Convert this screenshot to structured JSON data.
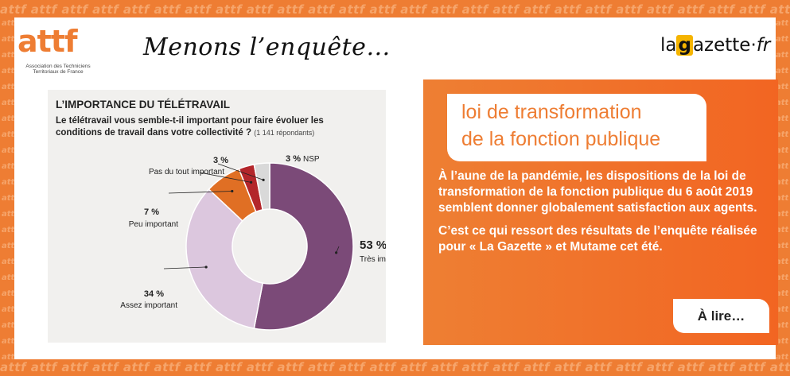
{
  "pattern_word": "attf",
  "branding": {
    "attf_logo": "attf",
    "attf_tagline": "Association des Techniciens Territoriaux de France",
    "headline": "Menons l’enquête…",
    "gazette_logo": {
      "pre": "la",
      "g": "g",
      "rest": "azette",
      "dot": "·",
      "suffix": "fr"
    }
  },
  "chart_data": {
    "type": "pie",
    "variant": "donut",
    "title": "L’IMPORTANCE DU TÉLÉTRAVAIL",
    "subtitle": "Le télétravail vous semble-t-il important pour faire évoluer les conditions de travail dans votre collectivité ?",
    "note": "(1 141 répondants)",
    "slices": [
      {
        "label": "Très important",
        "value": 53,
        "value_label": "53 %",
        "color": "#7b4a78"
      },
      {
        "label": "Assez important",
        "value": 34,
        "value_label": "34 %",
        "color": "#dcc7de"
      },
      {
        "label": "Peu important",
        "value": 7,
        "value_label": "7 %",
        "color": "#e06f24"
      },
      {
        "label": "Pas du tout important",
        "value": 3,
        "value_label": "3 %",
        "color": "#b3262b"
      },
      {
        "label": "NSP",
        "value": 3,
        "value_label": "3 %",
        "color": "#d9d9d9"
      }
    ],
    "legend": "inline"
  },
  "info": {
    "title_lines": [
      "loi de transformation",
      "de la fonction publique"
    ],
    "paragraphs": [
      "À l’aune de la pandémie, les dispositions de la loi de transformation de la fonction publique du 6 août 2019 semblent donner globalement satisfaction aux agents.",
      "C’est ce qui ressort des résultats de l’enquête réalisée pour « La Gazette » et Mutame cet été."
    ],
    "cta_label": "À lire…"
  },
  "colors": {
    "accent": "#ee7d33",
    "pattern_text": "#f6a56b",
    "chart_bg": "#f1f0ee"
  }
}
